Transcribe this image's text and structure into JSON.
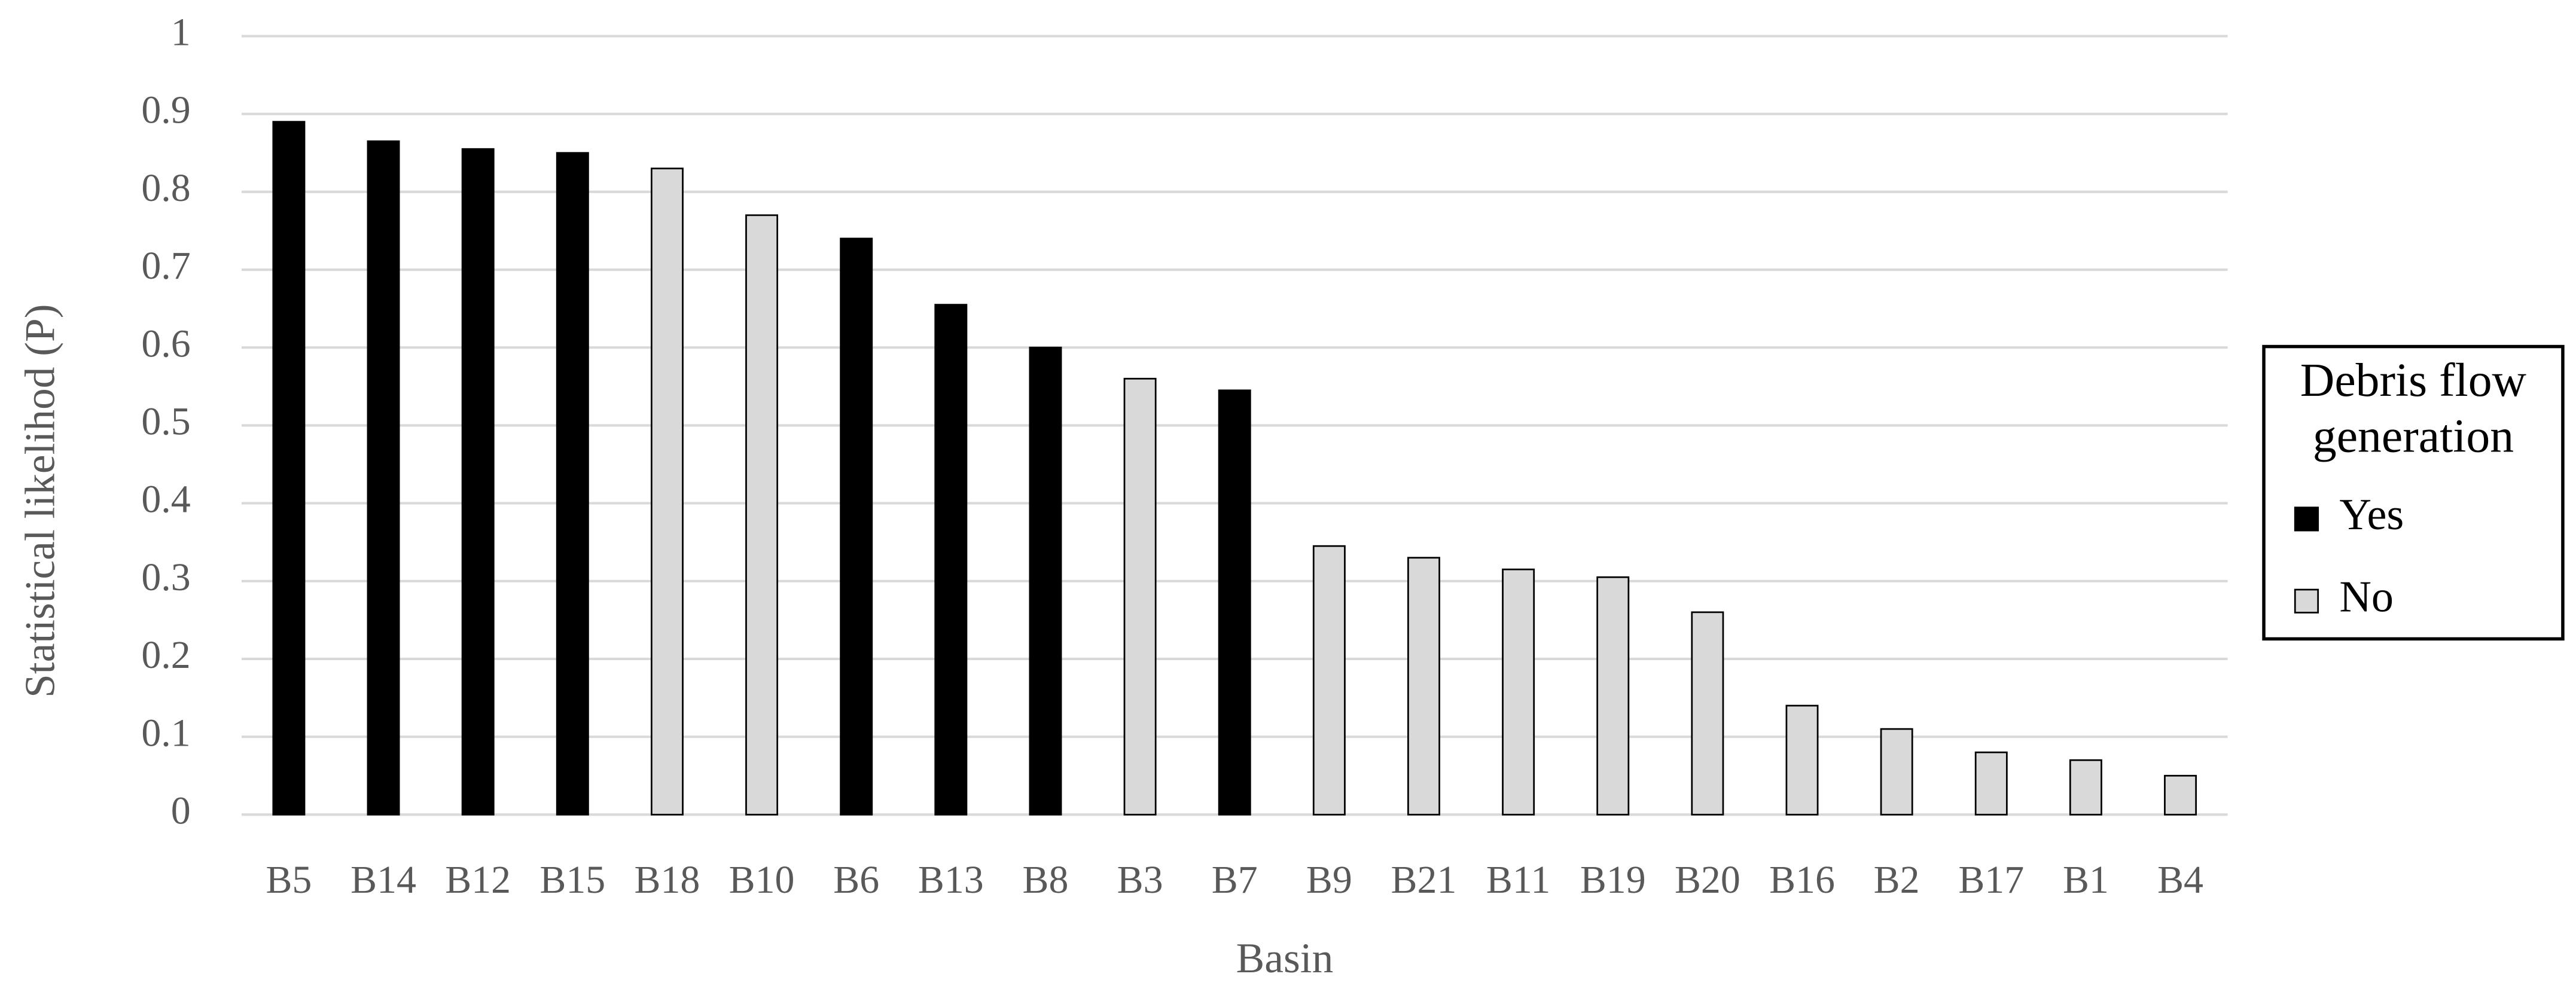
{
  "chart_data": {
    "type": "bar",
    "x_label": "Basin",
    "y_label": "Statistical likelihod (P)",
    "categories": [
      "B5",
      "B14",
      "B12",
      "B15",
      "B18",
      "B10",
      "B6",
      "B13",
      "B8",
      "B3",
      "B7",
      "B9",
      "B21",
      "B11",
      "B19",
      "B20",
      "B16",
      "B2",
      "B17",
      "B1",
      "B4"
    ],
    "legend_title": "Debris flow generation",
    "series": [
      {
        "name": "Yes",
        "color": "#000000",
        "values": [
          0.89,
          0.865,
          0.855,
          0.85,
          null,
          null,
          0.74,
          0.655,
          0.6,
          null,
          0.545,
          null,
          null,
          null,
          null,
          null,
          null,
          null,
          null,
          null,
          null
        ]
      },
      {
        "name": "No",
        "color": "#d9d9d9",
        "values": [
          null,
          null,
          null,
          null,
          0.83,
          0.77,
          null,
          null,
          null,
          0.56,
          null,
          0.345,
          0.33,
          0.315,
          0.305,
          0.26,
          0.14,
          0.11,
          0.08,
          0.07,
          0.05
        ]
      }
    ],
    "ylim": [
      0,
      1
    ],
    "yticks": [
      0,
      0.1,
      0.2,
      0.3,
      0.4,
      0.5,
      0.6,
      0.7,
      0.8,
      0.9,
      1
    ],
    "grid": true
  }
}
